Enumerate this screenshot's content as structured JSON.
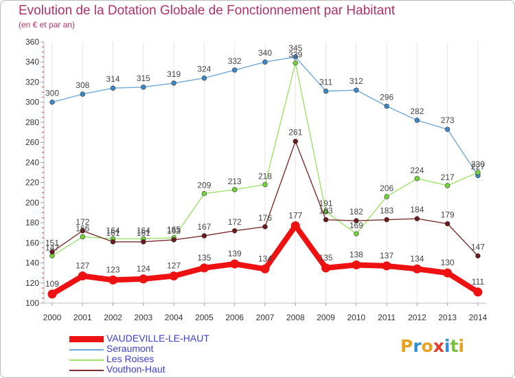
{
  "header": {
    "title": "Evolution de la Dotation Globale de Fonctionnement par Habitant",
    "subtitle": "(en € et par an)"
  },
  "chart_data": {
    "type": "line",
    "title": "Evolution de la Dotation Globale de Fonctionnement par Habitant",
    "subtitle": "(en € et par an)",
    "xlabel": "",
    "ylabel": "",
    "ylim": [
      100,
      360
    ],
    "yticks": [
      100,
      120,
      140,
      160,
      180,
      200,
      220,
      240,
      260,
      280,
      300,
      320,
      340,
      360
    ],
    "x": [
      "2000",
      "2001",
      "2002",
      "2003",
      "2004",
      "2005",
      "2006",
      "2007",
      "2008",
      "2009",
      "2010",
      "2011",
      "2012",
      "2013",
      "2014"
    ],
    "grid": "vertical",
    "series": [
      {
        "name": "Seraumont",
        "color": "#6fa7d6",
        "marker": "#3f88c8",
        "values": [
          300,
          308,
          314,
          315,
          319,
          324,
          332,
          340,
          345,
          311,
          312,
          296,
          282,
          273,
          227
        ]
      },
      {
        "name": "Les Roises",
        "color": "#9ce36a",
        "marker": "#72d43a",
        "values": [
          147,
          166,
          164,
          164,
          165,
          209,
          213,
          218,
          339,
          191,
          169,
          206,
          224,
          217,
          230
        ]
      },
      {
        "name": "Vouthon-Haut",
        "color": "#7a2c2c",
        "marker": "#6a1a1a",
        "values": [
          151,
          172,
          161,
          161,
          163,
          167,
          172,
          176,
          261,
          183,
          182,
          183,
          184,
          179,
          147
        ]
      },
      {
        "name": "VAUDEVILLE-LE-HAUT",
        "color": "#ee1111",
        "marker": "#ee1111",
        "values": [
          109,
          127,
          123,
          124,
          127,
          135,
          139,
          134,
          177,
          135,
          138,
          137,
          134,
          130,
          111
        ]
      }
    ],
    "point_labels": {
      "Seraumont": [
        "300",
        "308",
        "314",
        "315",
        "319",
        "324",
        "332",
        "340",
        "345",
        "311",
        "312",
        "296",
        "282",
        "273",
        "227"
      ],
      "Les Roises": [
        "147",
        "166",
        "164",
        "164",
        "165",
        "209",
        "213",
        "218",
        "339",
        "191",
        "169",
        "206",
        "224",
        "217",
        "230"
      ],
      "Vouthon-Haut": [
        "151",
        "172",
        "161",
        "161",
        "163",
        "167",
        "172",
        "176",
        "261",
        "183",
        "182",
        "183",
        "184",
        "179",
        "147"
      ],
      "VAUDEVILLE-LE-HAUT": [
        "109",
        "127",
        "123",
        "124",
        "127",
        "135",
        "139",
        "134",
        "177",
        "135",
        "138",
        "137",
        "134",
        "130",
        "111"
      ]
    },
    "legend_position": "bottom-left"
  },
  "legend": {
    "items": [
      {
        "label": "VAUDEVILLE-LE-HAUT",
        "color": "#ee1111"
      },
      {
        "label": "Seraumont",
        "color": "#6fa7d6"
      },
      {
        "label": "Les Roises",
        "color": "#9ce36a"
      },
      {
        "label": "Vouthon-Haut",
        "color": "#7a2c2c"
      }
    ]
  },
  "branding": {
    "logo": "Proxiti",
    "colors": [
      "#e8a020",
      "#2f8fd2",
      "#e8a020",
      "#e03c2a",
      "#2f8fd2",
      "#7ac142",
      "#e8a020"
    ]
  }
}
